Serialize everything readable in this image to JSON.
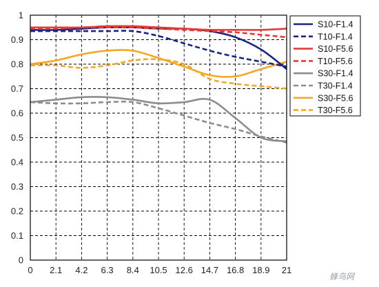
{
  "chart_data": {
    "type": "line",
    "title": "",
    "xlabel": "",
    "ylabel": "",
    "xlim": [
      0,
      21
    ],
    "ylim": [
      0,
      1
    ],
    "x_ticks": [
      0,
      2.1,
      4.2,
      6.3,
      8.4,
      10.5,
      12.6,
      14.7,
      16.8,
      18.9,
      21
    ],
    "x_tick_labels": [
      "0",
      "2.1",
      "4.2",
      "6.3",
      "8.4",
      "10.5",
      "12.6",
      "14.7",
      "16.8",
      "18.9",
      "21"
    ],
    "y_ticks": [
      0,
      0.1,
      0.2,
      0.3,
      0.4,
      0.5,
      0.6,
      0.7,
      0.8,
      0.9,
      1
    ],
    "y_tick_labels": [
      "0",
      "0.1",
      "0.2",
      "0.3",
      "0.4",
      "0.5",
      "0.6",
      "0.7",
      "0.8",
      "0.9",
      "1"
    ],
    "grid": true,
    "legend_position": "top-right",
    "x": [
      0,
      2.1,
      4.2,
      6.3,
      8.4,
      10.5,
      12.6,
      14.7,
      16.8,
      18.9,
      21
    ],
    "series": [
      {
        "name": "S10-F1.4",
        "color": "#1a237e",
        "dash": "solid",
        "values": [
          0.94,
          0.94,
          0.945,
          0.95,
          0.95,
          0.945,
          0.945,
          0.935,
          0.91,
          0.86,
          0.78
        ]
      },
      {
        "name": "T10-F1.4",
        "color": "#1a237e",
        "dash": "dashed",
        "values": [
          0.935,
          0.935,
          0.935,
          0.935,
          0.935,
          0.915,
          0.885,
          0.855,
          0.83,
          0.81,
          0.79
        ]
      },
      {
        "name": "S10-F5.6",
        "color": "#e53935",
        "dash": "solid",
        "values": [
          0.95,
          0.95,
          0.95,
          0.955,
          0.955,
          0.95,
          0.945,
          0.94,
          0.94,
          0.94,
          0.945
        ]
      },
      {
        "name": "T10-F5.6",
        "color": "#e53935",
        "dash": "dashed",
        "values": [
          0.945,
          0.945,
          0.95,
          0.95,
          0.95,
          0.945,
          0.94,
          0.935,
          0.93,
          0.92,
          0.91
        ]
      },
      {
        "name": "S30-F1.4",
        "color": "#8c8c8c",
        "dash": "solid",
        "values": [
          0.645,
          0.655,
          0.665,
          0.665,
          0.655,
          0.64,
          0.645,
          0.655,
          0.58,
          0.5,
          0.485
        ]
      },
      {
        "name": "T30-F1.4",
        "color": "#8c8c8c",
        "dash": "dashed",
        "values": [
          0.645,
          0.64,
          0.64,
          0.645,
          0.645,
          0.62,
          0.59,
          0.56,
          0.535,
          0.505,
          0.48
        ]
      },
      {
        "name": "S30-F5.6",
        "color": "#f5a623",
        "dash": "solid",
        "values": [
          0.8,
          0.815,
          0.84,
          0.855,
          0.855,
          0.825,
          0.79,
          0.755,
          0.75,
          0.78,
          0.81
        ]
      },
      {
        "name": "T30-F5.6",
        "color": "#f5a623",
        "dash": "dashed",
        "values": [
          0.795,
          0.795,
          0.785,
          0.795,
          0.815,
          0.82,
          0.8,
          0.74,
          0.72,
          0.71,
          0.7
        ]
      }
    ]
  },
  "watermark": "蜂鸟网"
}
